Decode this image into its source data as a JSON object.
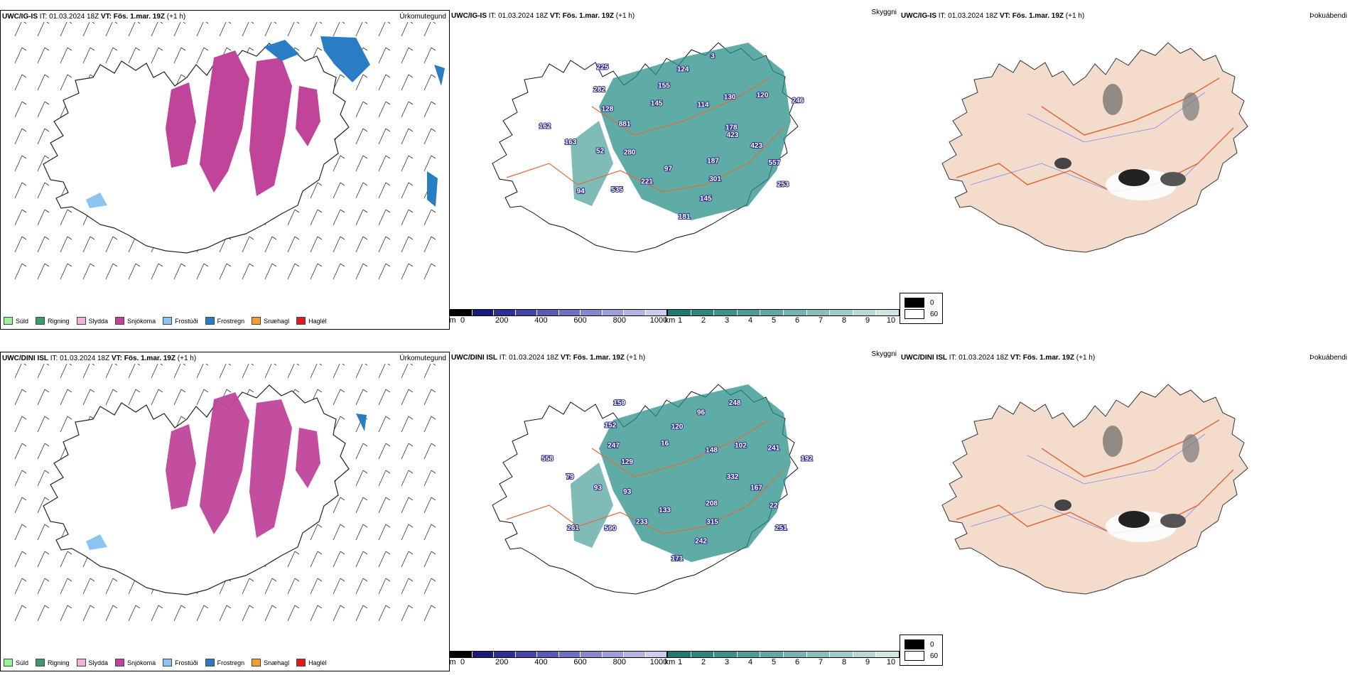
{
  "rows": [
    {
      "model": "UWC/IG-IS",
      "panels": {
        "ptype": {
          "title": "Úrkomutegund"
        },
        "cloud": {
          "title": "Skyggni",
          "labels": [
            "423",
            "423",
            "557",
            "253",
            "187",
            "301",
            "145",
            "181",
            "97",
            "221",
            "535",
            "94",
            "280",
            "52",
            "163",
            "162",
            "881",
            "128",
            "282",
            "225",
            "145",
            "155",
            "124",
            "3",
            "114",
            "130",
            "120",
            "246",
            "178"
          ]
        },
        "fog": {
          "title": "Þokuábendi"
        }
      }
    },
    {
      "model": "UWC/DINI ISL",
      "panels": {
        "ptype": {
          "title": "Úrkomutegund"
        },
        "cloud": {
          "title": "Skyggni",
          "labels": [
            "332",
            "167",
            "22",
            "251",
            "208",
            "315",
            "242",
            "171",
            "133",
            "233",
            "590",
            "261",
            "93",
            "93",
            "79",
            "558",
            "129",
            "247",
            "152",
            "159",
            "16",
            "120",
            "96",
            "248",
            "148",
            "102",
            "241",
            "192"
          ]
        },
        "fog": {
          "title": "Þokuábendi"
        }
      }
    }
  ],
  "header": {
    "it_label": "IT:",
    "it_value": "01.03.2024 18Z",
    "vt_label": "VT:",
    "vt_value": "Fös. 1.mar. 19Z",
    "lead": "(+1 h)"
  },
  "precip_legend": [
    {
      "label": "Súld",
      "color": "#98f598"
    },
    {
      "label": "Rigning",
      "color": "#3a9a6e"
    },
    {
      "label": "Slydda",
      "color": "#f2b3d8"
    },
    {
      "label": "Snjókoma",
      "color": "#c0449a"
    },
    {
      "label": "Frostúði",
      "color": "#8cc4f2"
    },
    {
      "label": "Frostregn",
      "color": "#2a7cc4"
    },
    {
      "label": "Snæhagl",
      "color": "#f0a030"
    },
    {
      "label": "Haglél",
      "color": "#e31a1c"
    }
  ],
  "colorbar_m": {
    "unit": "m",
    "ticks": [
      "0",
      "200",
      "400",
      "600",
      "800",
      "1000"
    ],
    "colors": [
      "#000000",
      "#1a1a7a",
      "#2e2e96",
      "#4545a8",
      "#5a5ab4",
      "#7070c0",
      "#8787cc",
      "#9e9ed8",
      "#b5b5e2",
      "#ccccec"
    ]
  },
  "colorbar_km": {
    "unit": "km",
    "ticks": [
      "1",
      "2",
      "3",
      "4",
      "5",
      "6",
      "7",
      "8",
      "9",
      "10"
    ],
    "colors": [
      "#1e7a72",
      "#2e857e",
      "#3e908a",
      "#4f9b96",
      "#62a6a2",
      "#76b2ae",
      "#8bbebb",
      "#a1cbc8",
      "#b8d8d6",
      "#d0e5e4"
    ]
  },
  "fog_legend": [
    {
      "label": "0",
      "color": "#000000"
    },
    {
      "label": "60",
      "color": "#ffffff"
    }
  ],
  "colors": {
    "land_fog": "#f3dccb",
    "road": "#e06a3a",
    "cloud": "#2a8f88",
    "snow": "#c0449a",
    "frz": "#2a7cc4",
    "lowvis": "#4a44b0",
    "river": "#7b8cf0"
  }
}
